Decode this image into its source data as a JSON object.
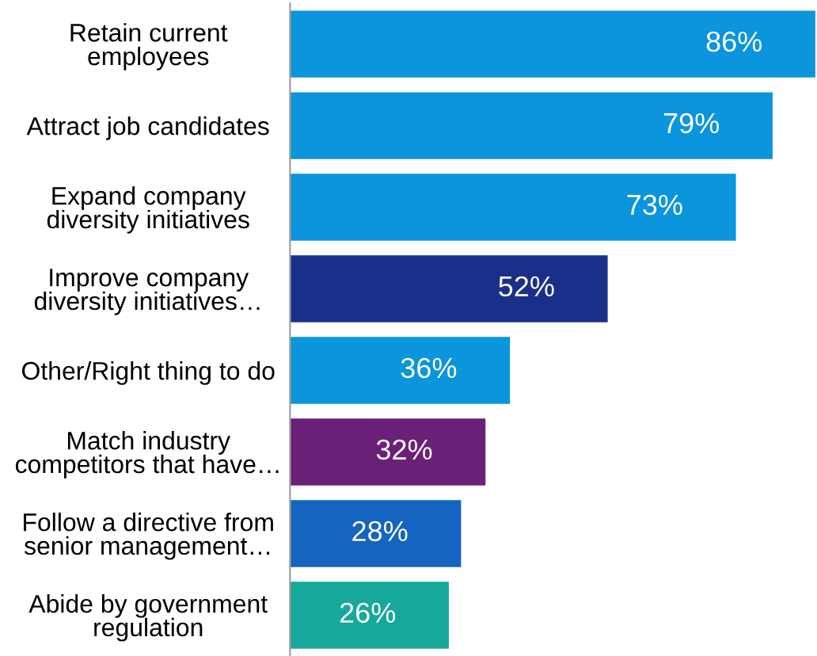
{
  "chart_data": {
    "type": "bar",
    "orientation": "horizontal",
    "tick_labels": "y",
    "grid": false,
    "legend": false,
    "categories": [
      "Retain current\nemployees",
      "Attract job candidates",
      "Expand company\ndiversity initiatives",
      "Improve company\ndiversity initiatives…",
      "Other/Right thing to do",
      "Match industry\ncompetitors that have…",
      "Follow a directive from\nsenior management…",
      "Abide by government\nregulation"
    ],
    "values": [
      86,
      79,
      73,
      52,
      36,
      32,
      28,
      26
    ],
    "value_labels": [
      "86%",
      "79%",
      "73%",
      "52%",
      "36%",
      "32%",
      "28%",
      "26%"
    ],
    "colors": [
      "#0a95dc",
      "#0a95dc",
      "#0a95dc",
      "#1a2f8a",
      "#0a95dc",
      "#6b2077",
      "#1565c0",
      "#16a89a"
    ]
  }
}
